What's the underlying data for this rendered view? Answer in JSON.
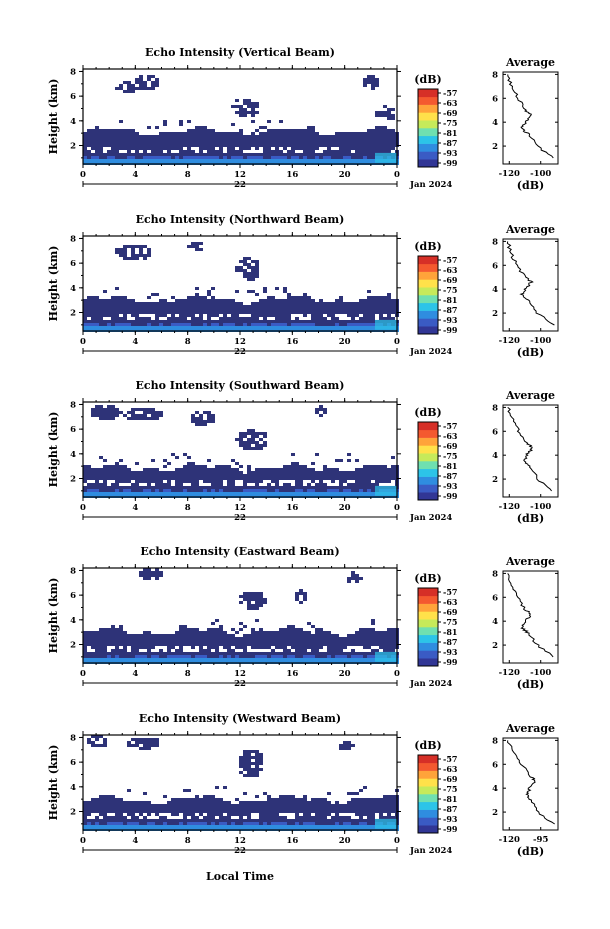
{
  "panels": [
    {
      "title": "Echo Intensity (Vertical Beam)",
      "beam": "vertical",
      "profile": {
        "title": "Average",
        "xticks": [
          "-120",
          "-100"
        ],
        "xlabel": "(dB)"
      }
    },
    {
      "title": "Echo Intensity (Northward Beam)",
      "beam": "north",
      "profile": {
        "title": "Average",
        "xticks": [
          "-120",
          "-100"
        ],
        "xlabel": "(dB)"
      }
    },
    {
      "title": "Echo Intensity (Southward Beam)",
      "beam": "south",
      "profile": {
        "title": "Average",
        "xticks": [
          "-120",
          "-100"
        ],
        "xlabel": "(dB)"
      }
    },
    {
      "title": "Echo Intensity (Eastward Beam)",
      "beam": "east",
      "profile": {
        "title": "Average",
        "xticks": [
          "-120",
          "-100"
        ],
        "xlabel": "(dB)"
      }
    },
    {
      "title": "Echo Intensity (Westward Beam)",
      "beam": "west",
      "profile": {
        "title": "Average",
        "xticks": [
          "-120",
          "-95"
        ],
        "xlabel": "(dB)"
      }
    }
  ],
  "shared": {
    "ylabel": "Height (km)",
    "yticks": [
      "2",
      "4",
      "6",
      "8"
    ],
    "xticks": [
      "0",
      "4",
      "8",
      "12",
      "16",
      "20",
      "0"
    ],
    "day_label": "22",
    "month_label": "Jan 2024",
    "xlabel": "Local Time",
    "colorbar_unit": "(dB)",
    "colorbar_ticks": [
      "-57",
      "-63",
      "-69",
      "-75",
      "-81",
      "-87",
      "-93",
      "-99"
    ],
    "profile_yticks": [
      "2",
      "4",
      "6",
      "8"
    ]
  },
  "colors": {
    "colorbar": [
      "#313695",
      "#3a5bc4",
      "#2f8de0",
      "#2cc4e8",
      "#6fe0b0",
      "#c6ea5a",
      "#ffe14a",
      "#ffa33a",
      "#f4592f",
      "#d62f27"
    ],
    "background": "#ffffff",
    "echo_low": "#2e3378",
    "echo_surface": "#2f8de0"
  },
  "chart_data": {
    "type": "heatmap",
    "x_range_hours": [
      0,
      24
    ],
    "y_range_km": [
      0.5,
      8.2
    ],
    "colorbar_range_db": [
      -99,
      -57
    ],
    "panels": [
      {
        "beam": "vertical",
        "profile_db": [
          [
            1.0,
            -92
          ],
          [
            2.0,
            -102
          ],
          [
            3.0,
            -108
          ],
          [
            3.5,
            -112
          ],
          [
            4.0,
            -110
          ],
          [
            4.6,
            -106
          ],
          [
            5.0,
            -110
          ],
          [
            6.0,
            -114
          ],
          [
            7.0,
            -119
          ],
          [
            8.0,
            -121
          ]
        ]
      },
      {
        "beam": "north",
        "profile_db": [
          [
            1.0,
            -92
          ],
          [
            2.0,
            -102
          ],
          [
            3.0,
            -108
          ],
          [
            3.5,
            -112
          ],
          [
            4.0,
            -110
          ],
          [
            4.6,
            -106
          ],
          [
            5.0,
            -110
          ],
          [
            6.0,
            -115
          ],
          [
            7.0,
            -119
          ],
          [
            8.0,
            -121
          ]
        ]
      },
      {
        "beam": "south",
        "profile_db": [
          [
            1.0,
            -92
          ],
          [
            2.0,
            -102
          ],
          [
            3.0,
            -106
          ],
          [
            3.5,
            -110
          ],
          [
            4.0,
            -109
          ],
          [
            4.6,
            -105
          ],
          [
            5.0,
            -109
          ],
          [
            6.0,
            -114
          ],
          [
            7.0,
            -118
          ],
          [
            8.0,
            -121
          ]
        ]
      },
      {
        "beam": "east",
        "profile_db": [
          [
            1.0,
            -92
          ],
          [
            2.0,
            -102
          ],
          [
            3.0,
            -108
          ],
          [
            3.5,
            -112
          ],
          [
            4.0,
            -110
          ],
          [
            4.6,
            -106
          ],
          [
            5.0,
            -110
          ],
          [
            6.0,
            -115
          ],
          [
            7.0,
            -119
          ],
          [
            8.0,
            -121
          ]
        ]
      },
      {
        "beam": "west",
        "profile_db": [
          [
            1.0,
            -92
          ],
          [
            2.0,
            -102
          ],
          [
            3.0,
            -106
          ],
          [
            3.5,
            -109
          ],
          [
            4.0,
            -107
          ],
          [
            4.6,
            -103
          ],
          [
            5.0,
            -107
          ],
          [
            6.0,
            -112
          ],
          [
            7.0,
            -117
          ],
          [
            8.0,
            -121
          ]
        ]
      }
    ]
  }
}
